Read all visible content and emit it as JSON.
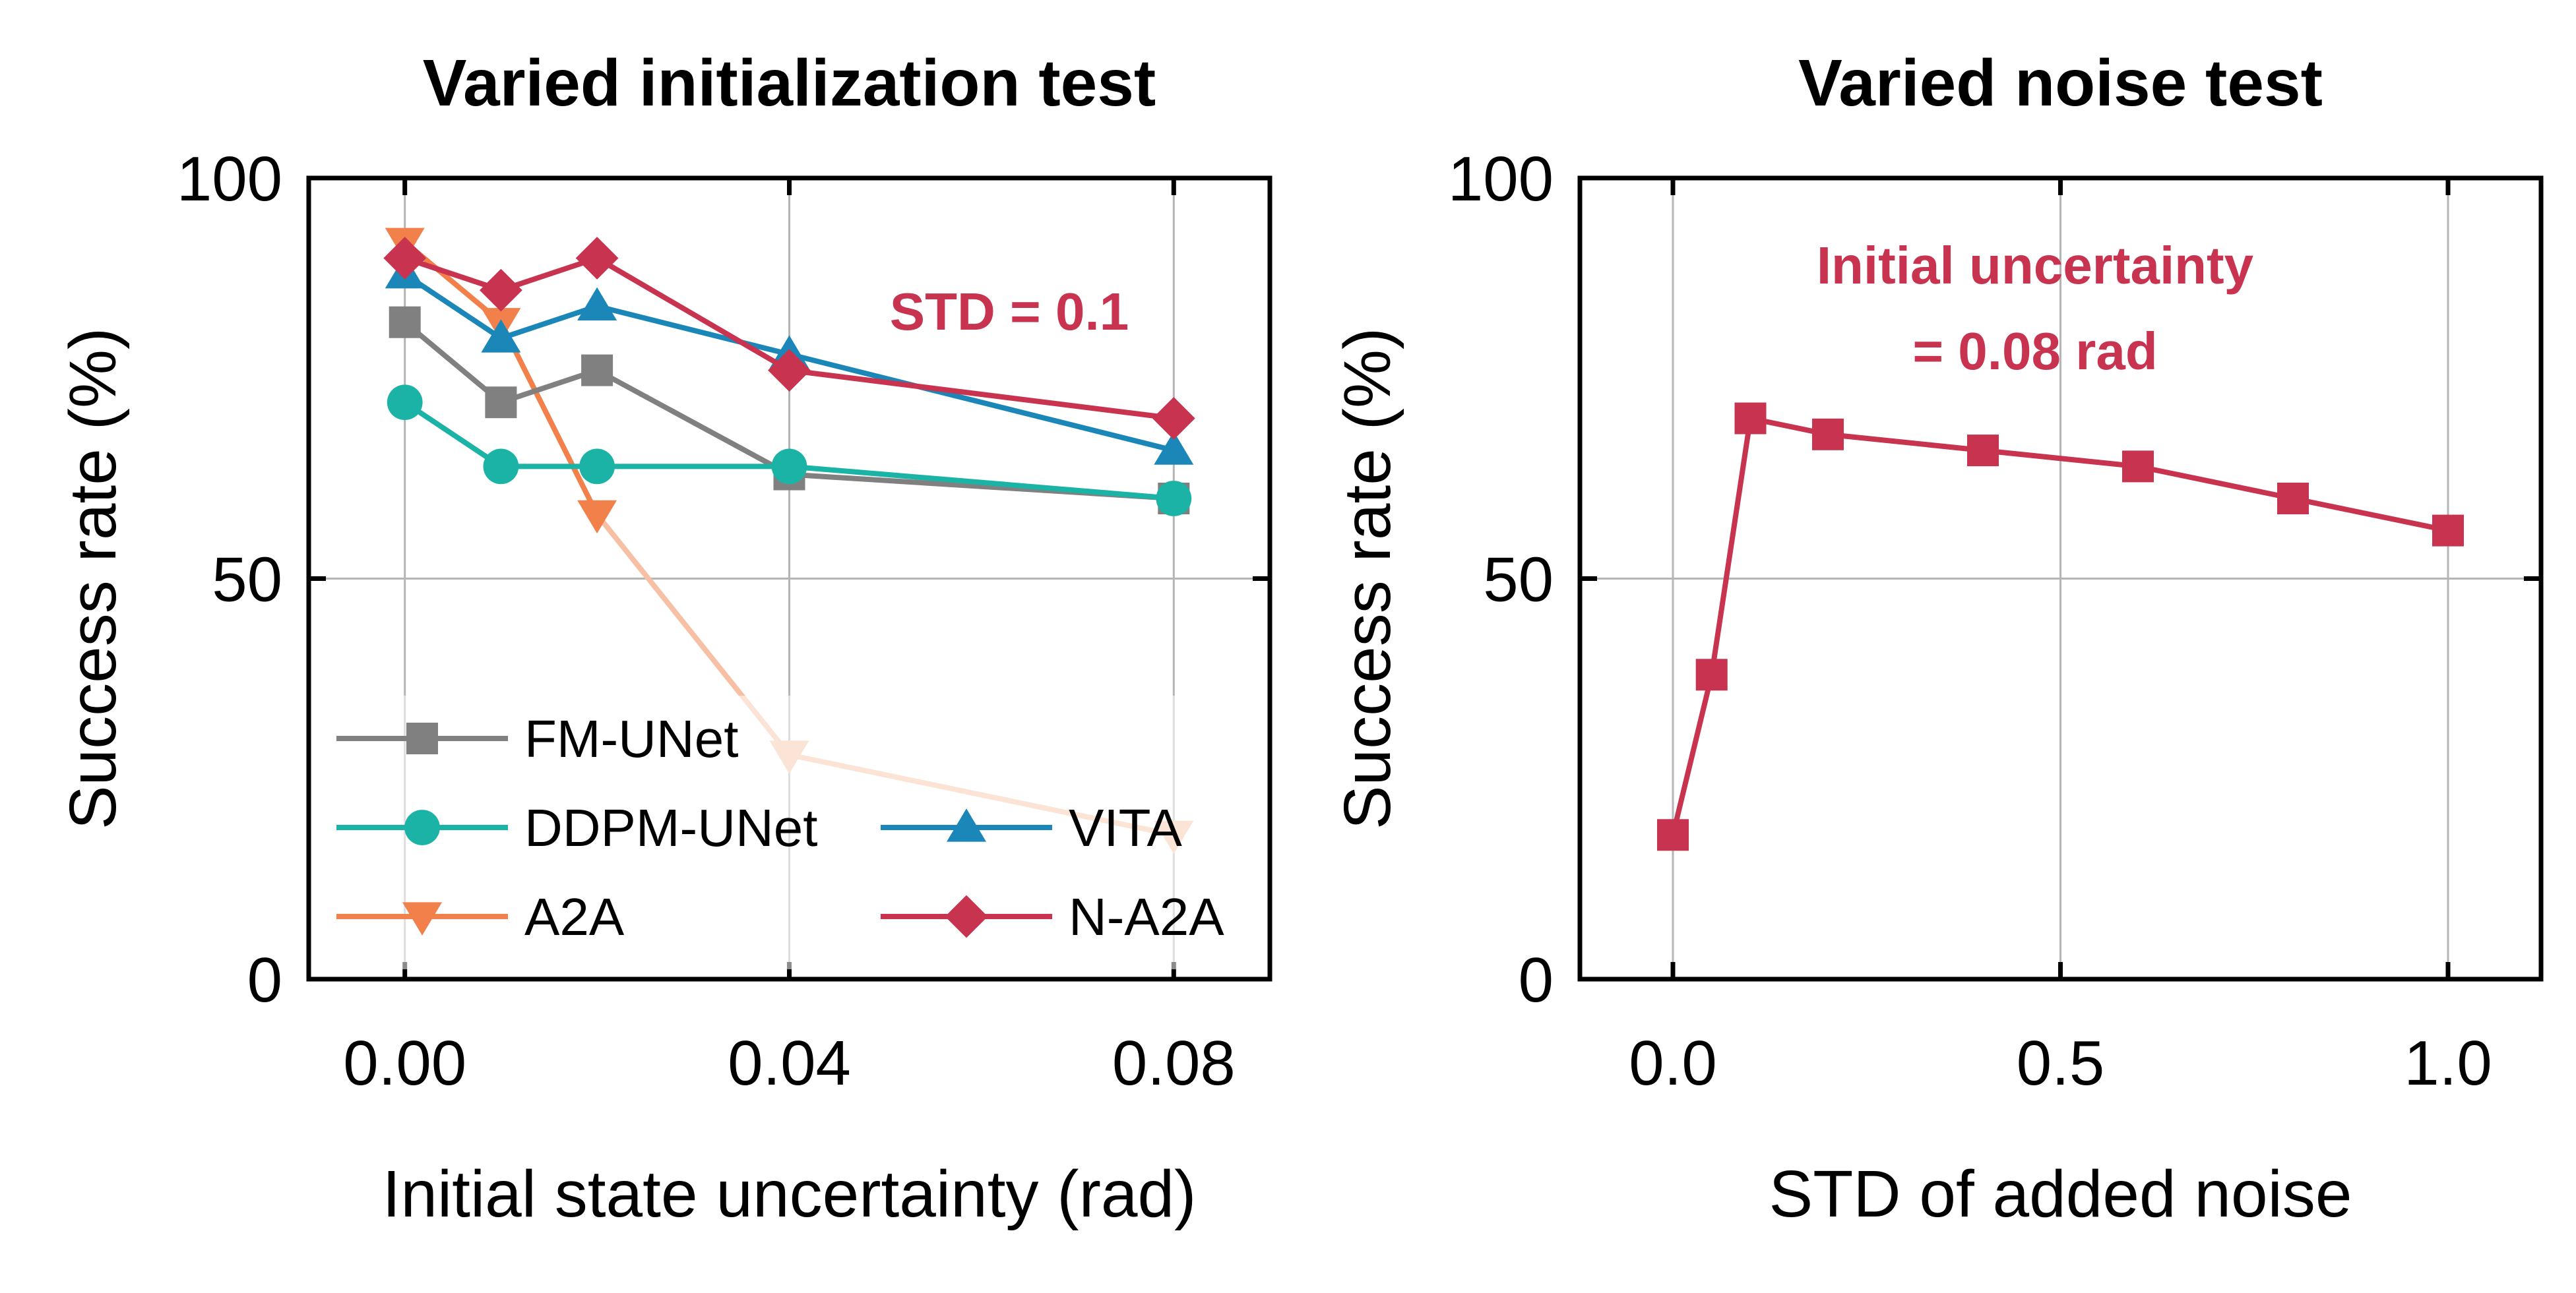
{
  "chart_data": [
    {
      "type": "line",
      "title": "Varied initialization test",
      "xlabel": "Initial state uncertainty (rad)",
      "ylabel": "Success rate (%)",
      "xlim": [
        -0.01,
        0.09
      ],
      "ylim": [
        0,
        100
      ],
      "xticks": [
        0.0,
        0.04,
        0.08
      ],
      "xtick_labels": [
        "0.00",
        "0.04",
        "0.08"
      ],
      "yticks": [
        0,
        50,
        100
      ],
      "ytick_labels": [
        "0",
        "50",
        "100"
      ],
      "grid": true,
      "legend_position": "bottom-left",
      "annotation": {
        "text": "STD = 0.1",
        "color": "#c8334f"
      },
      "x": [
        0.0,
        0.01,
        0.02,
        0.04,
        0.08
      ],
      "series": [
        {
          "name": "A2A",
          "color": "#f2804a",
          "fade_color": "#f7c0a4",
          "marker": "triangle-down",
          "values": [
            92,
            82,
            58,
            28,
            18
          ]
        },
        {
          "name": "FM-UNet",
          "color": "#808080",
          "marker": "square",
          "values": [
            82,
            72,
            76,
            63,
            60
          ]
        },
        {
          "name": "DDPM-UNet",
          "color": "#1bb3a5",
          "marker": "circle",
          "values": [
            72,
            64,
            64,
            64,
            60
          ]
        },
        {
          "name": "VITA",
          "color": "#1b87b9",
          "marker": "triangle-up",
          "values": [
            88,
            80,
            84,
            78,
            66
          ]
        },
        {
          "name": "N-A2A",
          "color": "#c8334f",
          "marker": "diamond",
          "values": [
            90,
            86,
            90,
            76,
            70
          ]
        }
      ]
    },
    {
      "type": "line",
      "title": "Varied noise test",
      "xlabel": "STD of added noise",
      "ylabel": "Success rate (%)",
      "xlim": [
        -0.12,
        1.12
      ],
      "ylim": [
        0,
        100
      ],
      "xticks": [
        0.0,
        0.5,
        1.0
      ],
      "xtick_labels": [
        "0.0",
        "0.5",
        "1.0"
      ],
      "yticks": [
        0,
        50,
        100
      ],
      "ytick_labels": [
        "0",
        "50",
        "100"
      ],
      "grid": true,
      "annotation": {
        "lines": [
          "Initial uncertainty",
          "= 0.08 rad"
        ],
        "color": "#c8334f"
      },
      "x": [
        0.0,
        0.05,
        0.1,
        0.2,
        0.4,
        0.6,
        0.8,
        1.0
      ],
      "series": [
        {
          "name": "N-A2A",
          "color": "#c8334f",
          "marker": "square",
          "values": [
            18,
            38,
            70,
            68,
            66,
            64,
            60,
            56
          ]
        }
      ]
    }
  ]
}
